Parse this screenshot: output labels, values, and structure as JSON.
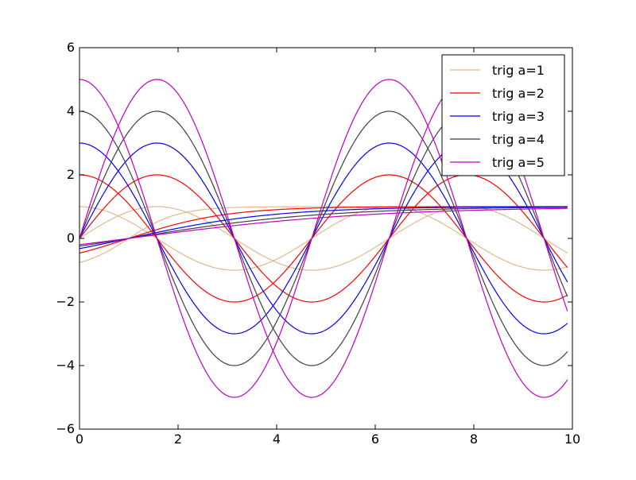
{
  "chart_data": {
    "type": "line",
    "title": "",
    "xlabel": "",
    "ylabel": "",
    "xlim": [
      0,
      10
    ],
    "ylim": [
      -6,
      6
    ],
    "grid": false,
    "legend_position": "top-right",
    "x_ticks": [
      0,
      2,
      4,
      6,
      8,
      10
    ],
    "x_tick_labels": [
      "0",
      "2",
      "4",
      "6",
      "8",
      "10"
    ],
    "y_ticks": [
      -6,
      -4,
      -2,
      0,
      2,
      4,
      6
    ],
    "y_tick_labels": [
      "−6",
      "−4",
      "−2",
      "0",
      "2",
      "4",
      "6"
    ],
    "x_range": [
      0,
      9.9
    ],
    "series": [
      {
        "name": "trig a=1",
        "a": 1,
        "color": "#e2b98c"
      },
      {
        "name": "trig a=2",
        "a": 2,
        "color": "#ff0000"
      },
      {
        "name": "trig a=3",
        "a": 3,
        "color": "#0000ff"
      },
      {
        "name": "trig a=4",
        "a": 4,
        "color": "#404040"
      },
      {
        "name": "trig a=5",
        "a": 5,
        "color": "#c000c0"
      }
    ],
    "curve_functions": [
      "a*sin(x)",
      "a*cos(x)",
      "tanh(x/a)"
    ]
  }
}
